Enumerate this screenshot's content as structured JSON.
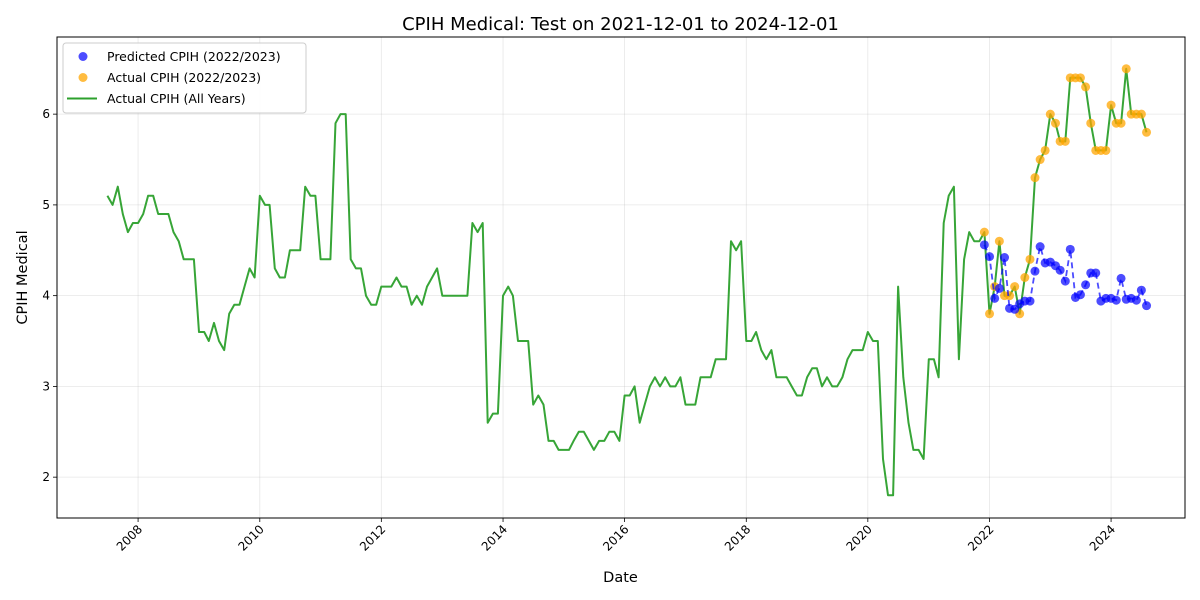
{
  "chart_data": {
    "type": "line",
    "title": "CPIH Medical: Test on 2021-12-01 to 2024-12-01",
    "xlabel": "Date",
    "ylabel": "CPIH Medical",
    "x_range": [
      "2006-09-01",
      "2025-03-20"
    ],
    "ylim": [
      1.55,
      6.85
    ],
    "x_ticks": [
      "2008",
      "2010",
      "2012",
      "2014",
      "2016",
      "2018",
      "2020",
      "2022",
      "2024"
    ],
    "y_ticks": [
      "2",
      "3",
      "4",
      "5",
      "6"
    ],
    "grid": true,
    "legend_position": "top-left",
    "colors": {
      "predicted": "#0000ff",
      "actual_points": "#ffa500",
      "actual_line": "#2ca02c"
    },
    "series": [
      {
        "name": "Predicted CPIH (2022/2023)",
        "kind": "scatter-dashed",
        "x": [
          "2021-12",
          "2022-01",
          "2022-02",
          "2022-03",
          "2022-04",
          "2022-05",
          "2022-06",
          "2022-07",
          "2022-08",
          "2022-09",
          "2022-10",
          "2022-11",
          "2022-12",
          "2023-01",
          "2023-02",
          "2023-03",
          "2023-04",
          "2023-05",
          "2023-06",
          "2023-07",
          "2023-08",
          "2023-09",
          "2023-10",
          "2023-11",
          "2023-12",
          "2024-01",
          "2024-02",
          "2024-03",
          "2024-04",
          "2024-05",
          "2024-06",
          "2024-07",
          "2024-08"
        ],
        "y": [
          4.56,
          4.43,
          3.97,
          4.08,
          4.42,
          3.86,
          3.85,
          3.91,
          3.94,
          3.94,
          4.27,
          4.54,
          4.36,
          4.37,
          4.33,
          4.28,
          4.16,
          4.51,
          3.98,
          4.01,
          4.12,
          4.25,
          4.25,
          3.94,
          3.97,
          3.97,
          3.95,
          4.19,
          3.96,
          3.97,
          3.95,
          4.06,
          3.89
        ]
      },
      {
        "name": "Actual CPIH (2022/2023)",
        "kind": "scatter",
        "x": [
          "2021-12",
          "2022-01",
          "2022-02",
          "2022-03",
          "2022-04",
          "2022-05",
          "2022-06",
          "2022-07",
          "2022-08",
          "2022-09",
          "2022-10",
          "2022-11",
          "2022-12",
          "2023-01",
          "2023-02",
          "2023-03",
          "2023-04",
          "2023-05",
          "2023-06",
          "2023-07",
          "2023-08",
          "2023-09",
          "2023-10",
          "2023-11",
          "2023-12",
          "2024-01",
          "2024-02",
          "2024-03",
          "2024-04",
          "2024-05",
          "2024-06",
          "2024-07",
          "2024-08"
        ],
        "y": [
          4.7,
          3.8,
          4.1,
          4.6,
          4.0,
          4.0,
          4.1,
          3.8,
          4.2,
          4.4,
          5.3,
          5.5,
          5.6,
          6.0,
          5.9,
          5.7,
          5.7,
          6.4,
          6.4,
          6.4,
          6.3,
          5.9,
          5.6,
          5.6,
          5.6,
          6.1,
          5.9,
          5.9,
          6.5,
          6.0,
          6.0,
          6.0,
          5.8
        ]
      },
      {
        "name": "Actual CPIH (All Years)",
        "kind": "line",
        "start": "2007-07",
        "monthly_values": [
          5.1,
          5.0,
          5.2,
          4.9,
          4.7,
          4.8,
          4.8,
          4.9,
          5.1,
          5.1,
          4.9,
          4.9,
          4.9,
          4.7,
          4.6,
          4.4,
          4.4,
          4.4,
          3.6,
          3.6,
          3.5,
          3.7,
          3.5,
          3.4,
          3.8,
          3.9,
          3.9,
          4.1,
          4.3,
          4.2,
          5.1,
          5.0,
          5.0,
          4.3,
          4.2,
          4.2,
          4.5,
          4.5,
          4.5,
          5.2,
          5.1,
          5.1,
          4.4,
          4.4,
          4.4,
          5.9,
          6.0,
          6.0,
          4.4,
          4.3,
          4.3,
          4.0,
          3.9,
          3.9,
          4.1,
          4.1,
          4.1,
          4.2,
          4.1,
          4.1,
          3.9,
          4.0,
          3.9,
          4.1,
          4.2,
          4.3,
          4.0,
          4.0,
          4.0,
          4.0,
          4.0,
          4.0,
          4.8,
          4.7,
          4.8,
          2.6,
          2.7,
          2.7,
          4.0,
          4.1,
          4.0,
          3.5,
          3.5,
          3.5,
          2.8,
          2.9,
          2.8,
          2.4,
          2.4,
          2.3,
          2.3,
          2.3,
          2.4,
          2.5,
          2.5,
          2.4,
          2.3,
          2.4,
          2.4,
          2.5,
          2.5,
          2.4,
          2.9,
          2.9,
          3.0,
          2.6,
          2.8,
          3.0,
          3.1,
          3.0,
          3.1,
          3.0,
          3.0,
          3.1,
          2.8,
          2.8,
          2.8,
          3.1,
          3.1,
          3.1,
          3.3,
          3.3,
          3.3,
          4.6,
          4.5,
          4.6,
          3.5,
          3.5,
          3.6,
          3.4,
          3.3,
          3.4,
          3.1,
          3.1,
          3.1,
          3.0,
          2.9,
          2.9,
          3.1,
          3.2,
          3.2,
          3.0,
          3.1,
          3.0,
          3.0,
          3.1,
          3.3,
          3.4,
          3.4,
          3.4,
          3.6,
          3.5,
          3.5,
          2.2,
          1.8,
          1.8,
          4.1,
          3.1,
          2.6,
          2.3,
          2.3,
          2.2,
          3.3,
          3.3,
          3.1,
          4.8,
          5.1,
          5.2,
          3.3,
          4.4,
          4.7,
          4.6,
          4.6,
          4.7,
          3.8,
          4.1,
          4.6,
          4.0,
          4.0,
          4.1,
          3.8,
          4.2,
          4.4,
          5.3,
          5.5,
          5.6,
          6.0,
          5.9,
          5.7,
          5.7,
          6.4,
          6.4,
          6.4,
          6.3,
          5.9,
          5.6,
          5.6,
          5.6,
          6.1,
          5.9,
          5.9,
          6.5,
          6.0,
          6.0,
          6.0,
          5.8
        ]
      }
    ]
  }
}
